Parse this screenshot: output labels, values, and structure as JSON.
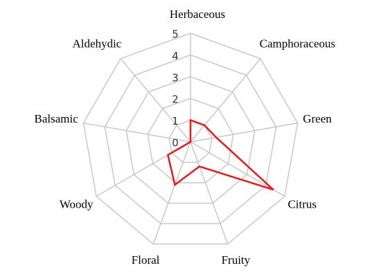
{
  "chart_data": {
    "type": "radar",
    "categories": [
      "Herbaceous",
      "Camphoraceous",
      "Green",
      "Citrus",
      "Fruity",
      "Floral",
      "Woody",
      "Balsamic",
      "Aldehydic"
    ],
    "series": [
      {
        "color": "#e8191c",
        "values": [
          1.0,
          1.0,
          1.2,
          4.4,
          1.2,
          2.1,
          1.2,
          0,
          0
        ]
      }
    ],
    "rlim": [
      0,
      5
    ],
    "rticks": [
      0,
      1,
      2,
      3,
      4,
      5
    ],
    "grid": true
  }
}
